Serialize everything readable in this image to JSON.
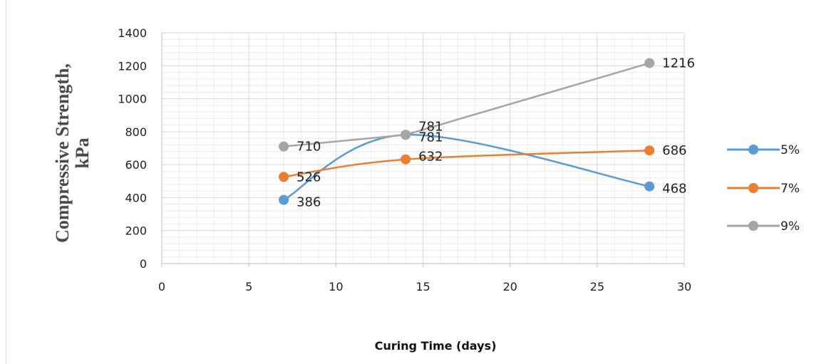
{
  "chart_data": {
    "type": "line",
    "title": "",
    "xlabel": "Curing Time (days)",
    "ylabel_line1": "Compressive Strength,",
    "ylabel_line2": "kPa",
    "xlim": [
      0,
      30
    ],
    "ylim": [
      0,
      1400
    ],
    "x_ticks": [
      0,
      5,
      10,
      15,
      20,
      25,
      30
    ],
    "y_ticks": [
      0,
      200,
      400,
      600,
      800,
      1000,
      1200,
      1400
    ],
    "grid": true,
    "legend_position": "right",
    "series": [
      {
        "name": "5%",
        "color": "#5b9bd5",
        "smooth": true,
        "x": [
          7,
          14,
          28
        ],
        "values": [
          386,
          781,
          468
        ],
        "labels": [
          "386",
          "781",
          "468"
        ]
      },
      {
        "name": "7%",
        "color": "#ed7d31",
        "smooth": true,
        "x": [
          7,
          14,
          28
        ],
        "values": [
          526,
          632,
          686
        ],
        "labels": [
          "526",
          "632",
          "686"
        ]
      },
      {
        "name": "9%",
        "color": "#a5a5a5",
        "smooth": false,
        "x": [
          7,
          14,
          28
        ],
        "values": [
          710,
          781,
          1216
        ],
        "labels": [
          "710",
          "781",
          "1216"
        ]
      }
    ]
  }
}
